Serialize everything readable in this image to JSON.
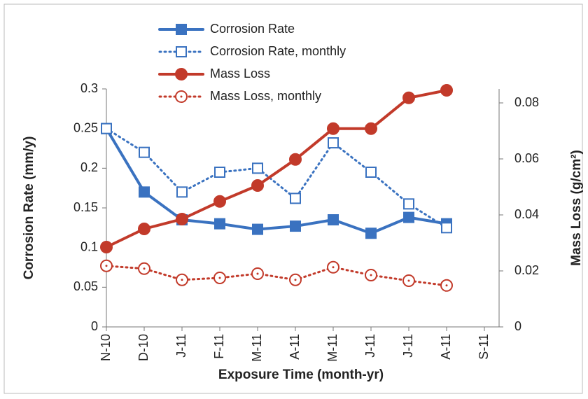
{
  "chart_data": {
    "type": "line",
    "x_label": "Exposure Time (month-yr)",
    "y_label": "Corrosion Rate (mm/y)",
    "y2_label": "Mass Loss (g/cm²)",
    "categories": [
      "N-10",
      "D-10",
      "J-11",
      "F-11",
      "M-11",
      "A-11",
      "M-11",
      "J-11",
      "J-11",
      "A-11",
      "S-11"
    ],
    "ylim": [
      0,
      0.3
    ],
    "yticks": [
      0,
      0.05,
      0.1,
      0.15,
      0.2,
      0.25,
      0.3
    ],
    "y2lim": [
      0,
      0.085
    ],
    "y2ticks": [
      0,
      0.02,
      0.04,
      0.06,
      0.08
    ],
    "legend": "top",
    "series": [
      {
        "name": "Corrosion Rate",
        "color": "#3a72c0",
        "style": "solid",
        "marker": "square",
        "filled": true,
        "values": [
          0.25,
          0.17,
          0.135,
          0.13,
          0.123,
          0.127,
          0.135,
          0.118,
          0.138,
          0.13,
          null
        ]
      },
      {
        "name": "Corrosion Rate, monthly",
        "color": "#3a72c0",
        "style": "dotted",
        "marker": "square",
        "filled": false,
        "values": [
          0.25,
          0.22,
          0.17,
          0.195,
          0.2,
          0.162,
          0.232,
          0.195,
          0.155,
          0.125,
          null
        ]
      },
      {
        "name": "Mass Loss",
        "color": "#c23a2a",
        "style": "solid",
        "marker": "circle",
        "filled": true,
        "axis": "y2",
        "values": [
          0.0285,
          0.035,
          0.0385,
          0.0448,
          0.0505,
          0.0598,
          0.0708,
          0.0708,
          0.0818,
          0.0845,
          null
        ]
      },
      {
        "name": "Mass Loss, monthly",
        "color": "#c23a2a",
        "style": "dotted",
        "marker": "circle",
        "filled": false,
        "axis": "y2",
        "values": [
          0.0218,
          0.0208,
          0.0168,
          0.0175,
          0.019,
          0.0168,
          0.0213,
          0.0185,
          0.0165,
          0.0148,
          null
        ]
      }
    ]
  }
}
